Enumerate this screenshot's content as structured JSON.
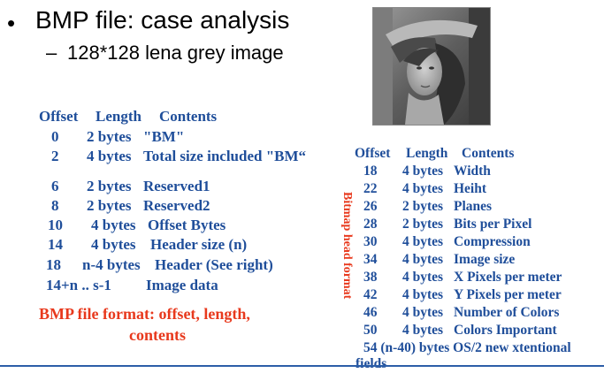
{
  "slide": {
    "bullet": "•",
    "title": "BMP file: case analysis",
    "sub_dash": "–",
    "subtitle": "128*128 lena grey image"
  },
  "left_table": {
    "header": {
      "offset": "Offset",
      "length": "Length",
      "contents": "Contents"
    },
    "rows": [
      {
        "offset": "0",
        "length": "2 bytes",
        "contents": "\"BM\""
      },
      {
        "offset": "2",
        "length": "4 bytes",
        "contents": "Total size included \"BM“"
      },
      {
        "offset": "6",
        "length": "2 bytes",
        "contents": "Reserved1"
      },
      {
        "offset": "8",
        "length": "2 bytes",
        "contents": "Reserved2"
      },
      {
        "offset": "10",
        "length": "4 bytes",
        "contents": "Offset Bytes"
      },
      {
        "offset": "14",
        "length": "4 bytes",
        "contents": "Header size (n)"
      },
      {
        "offset": "18",
        "length": "n-4 bytes",
        "contents": "Header (See right)"
      },
      {
        "offset": "14+n .. s-1",
        "length": "",
        "contents": "Image data"
      }
    ]
  },
  "caption": {
    "line1": "BMP file format:  offset, length,",
    "line2": "contents"
  },
  "vertical_label": "Bitmap head format",
  "right_table": {
    "header": {
      "offset": "Offset",
      "length": "Length",
      "contents": "Contents"
    },
    "rows": [
      {
        "offset": "18",
        "length": "4 bytes",
        "contents": "Width"
      },
      {
        "offset": "22",
        "length": "4 bytes",
        "contents": "Heiht"
      },
      {
        "offset": "26",
        "length": "2 bytes",
        "contents": "Planes"
      },
      {
        "offset": "28",
        "length": "2 bytes",
        "contents": "Bits per Pixel"
      },
      {
        "offset": "30",
        "length": "4 bytes",
        "contents": "Compression"
      },
      {
        "offset": "34",
        "length": "4 bytes",
        "contents": "Image size"
      },
      {
        "offset": "38",
        "length": "4 bytes",
        "contents": "X Pixels per meter"
      },
      {
        "offset": "42",
        "length": "4 bytes",
        "contents": "Y Pixels per meter"
      },
      {
        "offset": "46",
        "length": "4 bytes",
        "contents": "Number of Colors"
      },
      {
        "offset": "50",
        "length": "4 bytes",
        "contents": "Colors Important"
      }
    ],
    "last_line1": "54 (n-40) bytes  OS/2 new xtentional",
    "last_line2": "fields"
  },
  "colors": {
    "table_text": "#1f4e9a",
    "accent_red": "#e8391d",
    "rule": "#2c5ea8"
  }
}
